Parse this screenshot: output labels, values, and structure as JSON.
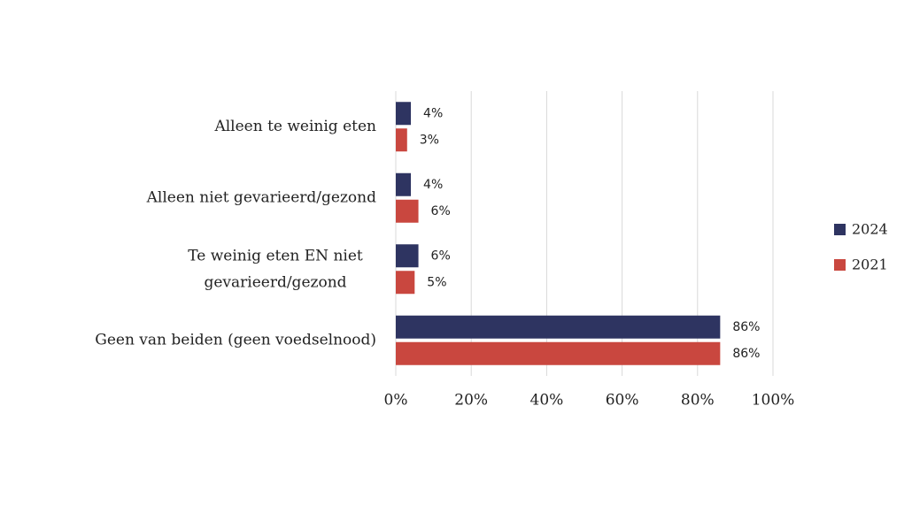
{
  "chart_data": {
    "type": "bar",
    "orientation": "horizontal",
    "categories": [
      "Alleen te weinig eten",
      "Alleen niet gevarieerd/gezond",
      "Te weinig eten EN niet\ngevarieerd/gezond",
      "Geen van beiden (geen voedselnood)"
    ],
    "series": [
      {
        "name": "2024",
        "color": "#2e3461",
        "values": [
          4,
          4,
          6,
          86
        ],
        "value_labels": [
          "4%",
          "4%",
          "6%",
          "86%"
        ]
      },
      {
        "name": "2021",
        "color": "#c9473f",
        "values": [
          3,
          6,
          5,
          86
        ],
        "value_labels": [
          "3%",
          "6%",
          "5%",
          "86%"
        ]
      }
    ],
    "xlim": [
      0,
      100
    ],
    "xticks": [
      {
        "value": 0,
        "label": "0%"
      },
      {
        "value": 20,
        "label": "20%"
      },
      {
        "value": 40,
        "label": "40%"
      },
      {
        "value": 60,
        "label": "60%"
      },
      {
        "value": 80,
        "label": "80%"
      },
      {
        "value": 100,
        "label": "100%"
      }
    ],
    "grid": true,
    "legend": "right"
  }
}
